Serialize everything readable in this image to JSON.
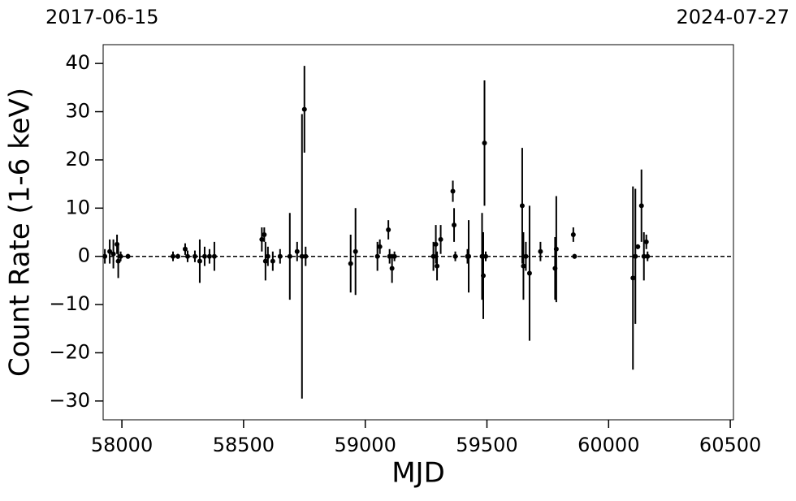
{
  "chart_data": {
    "type": "scatter",
    "xlabel": "MJD",
    "ylabel": "Count Rate (1-6 keV)",
    "xlim": [
      57923,
      60513
    ],
    "ylim": [
      -33.9,
      43.9
    ],
    "xticks": [
      58000,
      58500,
      59000,
      59500,
      60000,
      60500
    ],
    "yticks": [
      {
        "value": -30,
        "label": "−30"
      },
      {
        "value": -20,
        "label": "−20"
      },
      {
        "value": -10,
        "label": "−10"
      },
      0,
      10,
      20,
      30,
      40
    ],
    "x2ticks": [
      {
        "value": 57919,
        "label": "2017-06-15"
      },
      {
        "value": 60518,
        "label": "2024-07-27"
      }
    ],
    "hline": 0,
    "color": "#000000",
    "x": [
      57930,
      57950,
      57965,
      57980,
      57985,
      57995,
      58025,
      58210,
      58230,
      58260,
      58270,
      58300,
      58320,
      58340,
      58360,
      58380,
      58575,
      58585,
      58590,
      58600,
      58620,
      58650,
      58690,
      58720,
      58740,
      58750,
      58755,
      58940,
      58960,
      59050,
      59060,
      59095,
      59100,
      59110,
      59120,
      59280,
      59290,
      59295,
      59310,
      59360,
      59365,
      59370,
      59420,
      59425,
      59480,
      59485,
      59490,
      59495,
      59645,
      59650,
      59660,
      59675,
      59720,
      59780,
      59785,
      59855,
      59860,
      60100,
      60110,
      60120,
      60135,
      60145,
      60155,
      60160
    ],
    "values": [
      0,
      1,
      0.5,
      2.5,
      -1,
      0,
      0,
      0,
      0,
      1.5,
      0,
      0,
      -1,
      0,
      0,
      0,
      3.5,
      4.5,
      -1,
      0,
      -1,
      0,
      0,
      1,
      0,
      30.5,
      0,
      -1.5,
      1,
      0,
      2,
      5.5,
      0,
      -2.5,
      0,
      0,
      2.5,
      -2,
      3.5,
      13.5,
      6.5,
      0,
      0,
      0,
      0,
      -4,
      23.5,
      0,
      10.5,
      -2,
      0,
      -3.5,
      1,
      -2.5,
      1.5,
      4.5,
      0,
      -4.5,
      0,
      2,
      10.5,
      0,
      3,
      0
    ],
    "errors": [
      1.5,
      2.5,
      3,
      2,
      3.5,
      1,
      0.5,
      1,
      0.5,
      1.2,
      1.2,
      1.2,
      4.5,
      2,
      1.5,
      3,
      2.5,
      1.5,
      4,
      2,
      2,
      1.5,
      9,
      2,
      29.5,
      9,
      2,
      6,
      9,
      3,
      1.5,
      2,
      1.5,
      3,
      1,
      3,
      4,
      3,
      3,
      2.2,
      3.5,
      1,
      1.5,
      7.5,
      9,
      9,
      13,
      1,
      12,
      7,
      3,
      14,
      2,
      6.5,
      11,
      1.5,
      0.5,
      19,
      14,
      0.5,
      7.5,
      5,
      1.5,
      1
    ]
  }
}
